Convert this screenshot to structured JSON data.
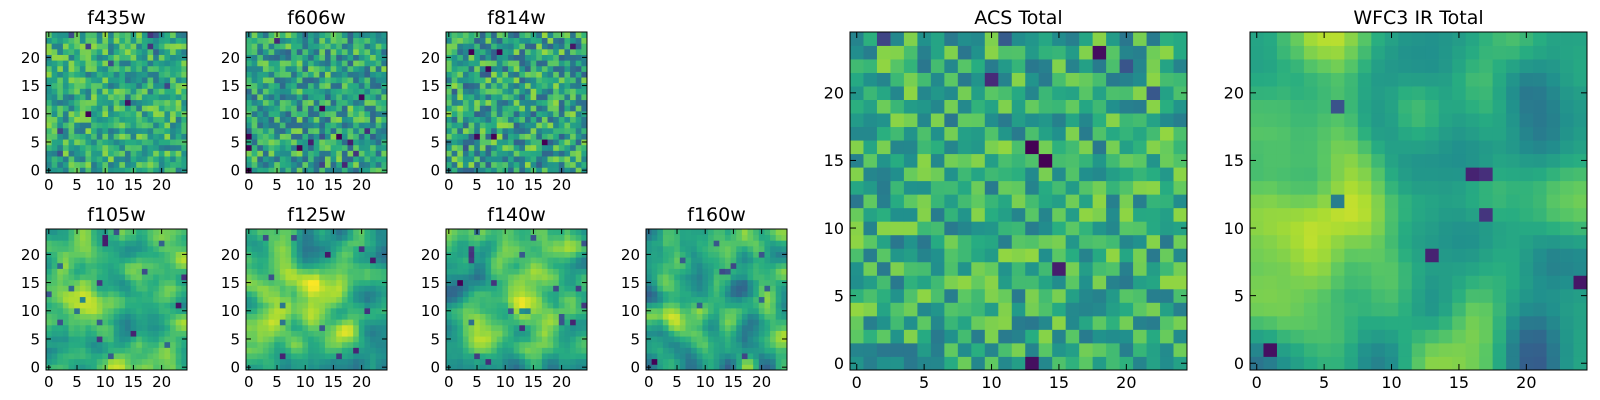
{
  "chart_data": [
    {
      "type": "heatmap",
      "title": "f435w",
      "grid_size": 25,
      "seed": 11,
      "smooth": 0,
      "base": 0.62,
      "amp": 0.22,
      "xticks": [
        0,
        5,
        10,
        15,
        20
      ],
      "yticks": [
        0,
        5,
        10,
        15,
        20
      ],
      "xlim": [
        0,
        25
      ],
      "ylim": [
        0,
        25
      ],
      "colormap": "viridis"
    },
    {
      "type": "heatmap",
      "title": "f606w",
      "grid_size": 25,
      "seed": 23,
      "smooth": 0,
      "base": 0.58,
      "amp": 0.25,
      "xticks": [
        0,
        5,
        10,
        15,
        20
      ],
      "yticks": [
        0,
        5,
        10,
        15,
        20
      ],
      "xlim": [
        0,
        25
      ],
      "ylim": [
        0,
        25
      ],
      "colormap": "viridis"
    },
    {
      "type": "heatmap",
      "title": "f814w",
      "grid_size": 25,
      "seed": 37,
      "smooth": 0,
      "base": 0.58,
      "amp": 0.27,
      "xticks": [
        0,
        5,
        10,
        15,
        20
      ],
      "yticks": [
        0,
        5,
        10,
        15,
        20
      ],
      "xlim": [
        0,
        25
      ],
      "ylim": [
        0,
        25
      ],
      "colormap": "viridis"
    },
    {
      "type": "heatmap",
      "title": "f105w",
      "grid_size": 25,
      "seed": 41,
      "smooth": 2,
      "base": 0.68,
      "amp": 0.25,
      "hotspot": [
        5,
        12
      ],
      "xticks": [
        0,
        5,
        10,
        15,
        20
      ],
      "yticks": [
        0,
        5,
        10,
        15,
        20
      ],
      "xlim": [
        0,
        25
      ],
      "ylim": [
        0,
        25
      ],
      "colormap": "viridis"
    },
    {
      "type": "heatmap",
      "title": "f125w",
      "grid_size": 25,
      "seed": 53,
      "smooth": 2,
      "base": 0.65,
      "amp": 0.28,
      "hotspot": [
        12,
        12
      ],
      "xticks": [
        0,
        5,
        10,
        15,
        20
      ],
      "yticks": [
        0,
        5,
        10,
        15,
        20
      ],
      "xlim": [
        0,
        25
      ],
      "ylim": [
        0,
        25
      ],
      "colormap": "viridis"
    },
    {
      "type": "heatmap",
      "title": "f140w",
      "grid_size": 25,
      "seed": 67,
      "smooth": 2,
      "base": 0.62,
      "amp": 0.28,
      "hotspot": [
        14,
        14
      ],
      "xticks": [
        0,
        5,
        10,
        15,
        20
      ],
      "yticks": [
        0,
        5,
        10,
        15,
        20
      ],
      "xlim": [
        0,
        25
      ],
      "ylim": [
        0,
        25
      ],
      "colormap": "viridis"
    },
    {
      "type": "heatmap",
      "title": "f160w",
      "grid_size": 25,
      "seed": 79,
      "smooth": 2,
      "base": 0.58,
      "amp": 0.3,
      "hotspot": [
        6,
        9
      ],
      "xticks": [
        0,
        5,
        10,
        15,
        20
      ],
      "yticks": [
        0,
        5,
        10,
        15,
        20
      ],
      "xlim": [
        0,
        25
      ],
      "ylim": [
        0,
        25
      ],
      "colormap": "viridis"
    },
    {
      "type": "heatmap",
      "title": "ACS Total",
      "grid_size": 25,
      "seed": 97,
      "smooth": 0,
      "base": 0.62,
      "amp": 0.22,
      "xticks": [
        0,
        5,
        10,
        15,
        20
      ],
      "yticks": [
        0,
        5,
        10,
        15,
        20
      ],
      "xlim": [
        0,
        25
      ],
      "ylim": [
        0,
        25
      ],
      "colormap": "viridis"
    },
    {
      "type": "heatmap",
      "title": "WFC3 IR Total",
      "grid_size": 25,
      "seed": 131,
      "smooth": 3,
      "base": 0.6,
      "amp": 0.3,
      "hotspot": [
        4,
        9
      ],
      "xticks": [
        0,
        5,
        10,
        15,
        20
      ],
      "yticks": [
        0,
        5,
        10,
        15,
        20
      ],
      "xlim": [
        0,
        25
      ],
      "ylim": [
        0,
        25
      ],
      "colormap": "viridis"
    }
  ]
}
